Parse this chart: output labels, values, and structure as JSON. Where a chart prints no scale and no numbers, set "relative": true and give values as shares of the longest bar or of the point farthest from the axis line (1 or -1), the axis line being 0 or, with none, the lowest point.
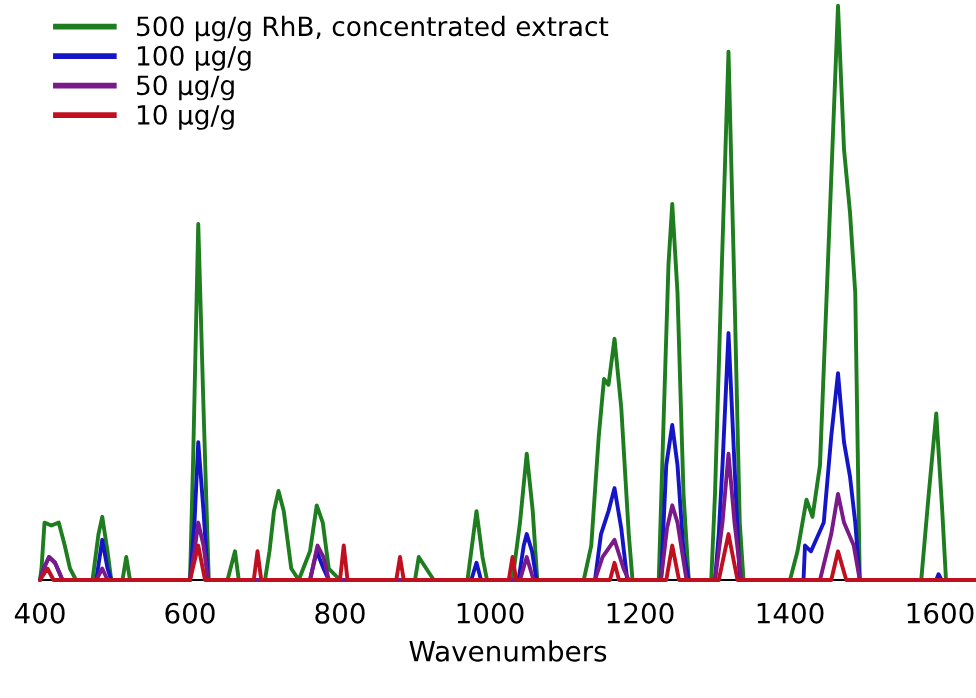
{
  "chart_data": {
    "type": "line",
    "relative": true,
    "xlabel": "Wavenumbers",
    "xlim": [
      400,
      1648
    ],
    "xticks": [
      400,
      600,
      800,
      1000,
      1200,
      1400,
      1600
    ],
    "legend": "top left",
    "grid": false,
    "marker": "none",
    "line_style": "solid",
    "series": [
      {
        "name": "500 µg/g RhB, concentrated extract",
        "color": "#1e7d1e",
        "x": [
          400,
          402,
          406,
          415,
          425,
          433,
          440,
          448,
          470,
          478,
          483,
          490,
          495,
          510,
          515,
          520,
          600,
          604,
          611,
          618,
          625,
          650,
          660,
          665,
          700,
          706,
          712,
          718,
          725,
          735,
          745,
          760,
          769,
          777,
          785,
          800,
          900,
          905,
          915,
          925,
          970,
          976,
          982,
          990,
          996,
          1030,
          1040,
          1049,
          1057,
          1063,
          1125,
          1135,
          1145,
          1152,
          1158,
          1166,
          1175,
          1185,
          1190,
          1225,
          1232,
          1238,
          1243,
          1250,
          1258,
          1265,
          1295,
          1300,
          1308,
          1318,
          1326,
          1333,
          1338,
          1400,
          1410,
          1422,
          1430,
          1440,
          1452,
          1464,
          1472,
          1480,
          1487,
          1493,
          1575,
          1585,
          1595,
          1603,
          1608,
          1648
        ],
        "values": [
          0,
          0.02,
          0.1,
          0.095,
          0.1,
          0.06,
          0.02,
          0,
          0,
          0.08,
          0.11,
          0.05,
          0,
          0,
          0.04,
          0,
          0,
          0.2,
          0.62,
          0.3,
          0,
          0,
          0.05,
          0,
          0,
          0.05,
          0.12,
          0.155,
          0.12,
          0.02,
          0,
          0.05,
          0.13,
          0.1,
          0.02,
          0,
          0,
          0.04,
          0.02,
          0,
          0,
          0.06,
          0.12,
          0.04,
          0,
          0,
          0.1,
          0.22,
          0.12,
          0,
          0,
          0.06,
          0.25,
          0.35,
          0.34,
          0.42,
          0.3,
          0.08,
          0,
          0,
          0.3,
          0.55,
          0.655,
          0.5,
          0.15,
          0,
          0,
          0.15,
          0.5,
          0.92,
          0.5,
          0.1,
          0,
          0,
          0.05,
          0.14,
          0.11,
          0.2,
          0.6,
          1,
          0.75,
          0.64,
          0.5,
          0,
          0,
          0.15,
          0.29,
          0.12,
          0,
          0
        ]
      },
      {
        "name": "100 µg/g",
        "color": "#1515c8",
        "x": [
          400,
          405,
          412,
          420,
          430,
          475,
          483,
          490,
          495,
          600,
          606,
          611,
          618,
          624,
          760,
          769,
          778,
          785,
          975,
          982,
          988,
          1038,
          1045,
          1049,
          1056,
          1062,
          1140,
          1148,
          1158,
          1166,
          1175,
          1183,
          1228,
          1235,
          1243,
          1250,
          1258,
          1265,
          1300,
          1305,
          1310,
          1318,
          1326,
          1333,
          1418,
          1420,
          1428,
          1445,
          1455,
          1464,
          1472,
          1480,
          1487,
          1493,
          1595,
          1598,
          1602,
          1648
        ],
        "values": [
          0,
          0.02,
          0.04,
          0.03,
          0,
          0,
          0.07,
          0.02,
          0,
          0,
          0.1,
          0.24,
          0.12,
          0,
          0,
          0.05,
          0.02,
          0,
          0,
          0.03,
          0,
          0,
          0.06,
          0.08,
          0.05,
          0,
          0,
          0.08,
          0.12,
          0.16,
          0.09,
          0,
          0,
          0.2,
          0.27,
          0.2,
          0.05,
          0,
          0,
          0.08,
          0.2,
          0.43,
          0.2,
          0,
          0,
          0.06,
          0.05,
          0.1,
          0.25,
          0.36,
          0.24,
          0.18,
          0.1,
          0,
          0,
          0.01,
          0,
          0
        ]
      },
      {
        "name": "50 µg/g",
        "color": "#7a1a8a",
        "x": [
          400,
          405,
          412,
          420,
          430,
          475,
          483,
          490,
          600,
          606,
          611,
          618,
          624,
          760,
          770,
          778,
          785,
          1040,
          1049,
          1058,
          1140,
          1150,
          1166,
          1178,
          1185,
          1228,
          1236,
          1243,
          1250,
          1262,
          1300,
          1310,
          1318,
          1326,
          1335,
          1440,
          1455,
          1464,
          1472,
          1485,
          1493,
          1648
        ],
        "values": [
          0,
          0.02,
          0.04,
          0.03,
          0,
          0,
          0.02,
          0,
          0,
          0.05,
          0.1,
          0.06,
          0,
          0,
          0.06,
          0.04,
          0,
          0,
          0.04,
          0,
          0,
          0.04,
          0.07,
          0.02,
          0,
          0,
          0.09,
          0.13,
          0.1,
          0,
          0,
          0.1,
          0.22,
          0.1,
          0,
          0,
          0.08,
          0.15,
          0.1,
          0.06,
          0,
          0
        ]
      },
      {
        "name": "10 µg/g",
        "color": "#c01020",
        "x": [
          400,
          410,
          418,
          600,
          611,
          620,
          685,
          690,
          695,
          800,
          805,
          810,
          875,
          880,
          885,
          1025,
          1030,
          1035,
          1160,
          1166,
          1172,
          1235,
          1243,
          1252,
          1305,
          1318,
          1330,
          1455,
          1464,
          1475,
          1648
        ],
        "values": [
          0,
          0.02,
          0,
          0,
          0.06,
          0,
          0,
          0.05,
          0,
          0,
          0.06,
          0,
          0,
          0.04,
          0,
          0,
          0.04,
          0,
          0,
          0.03,
          0,
          0,
          0.06,
          0,
          0,
          0.08,
          0,
          0,
          0.05,
          0,
          0
        ]
      }
    ]
  }
}
